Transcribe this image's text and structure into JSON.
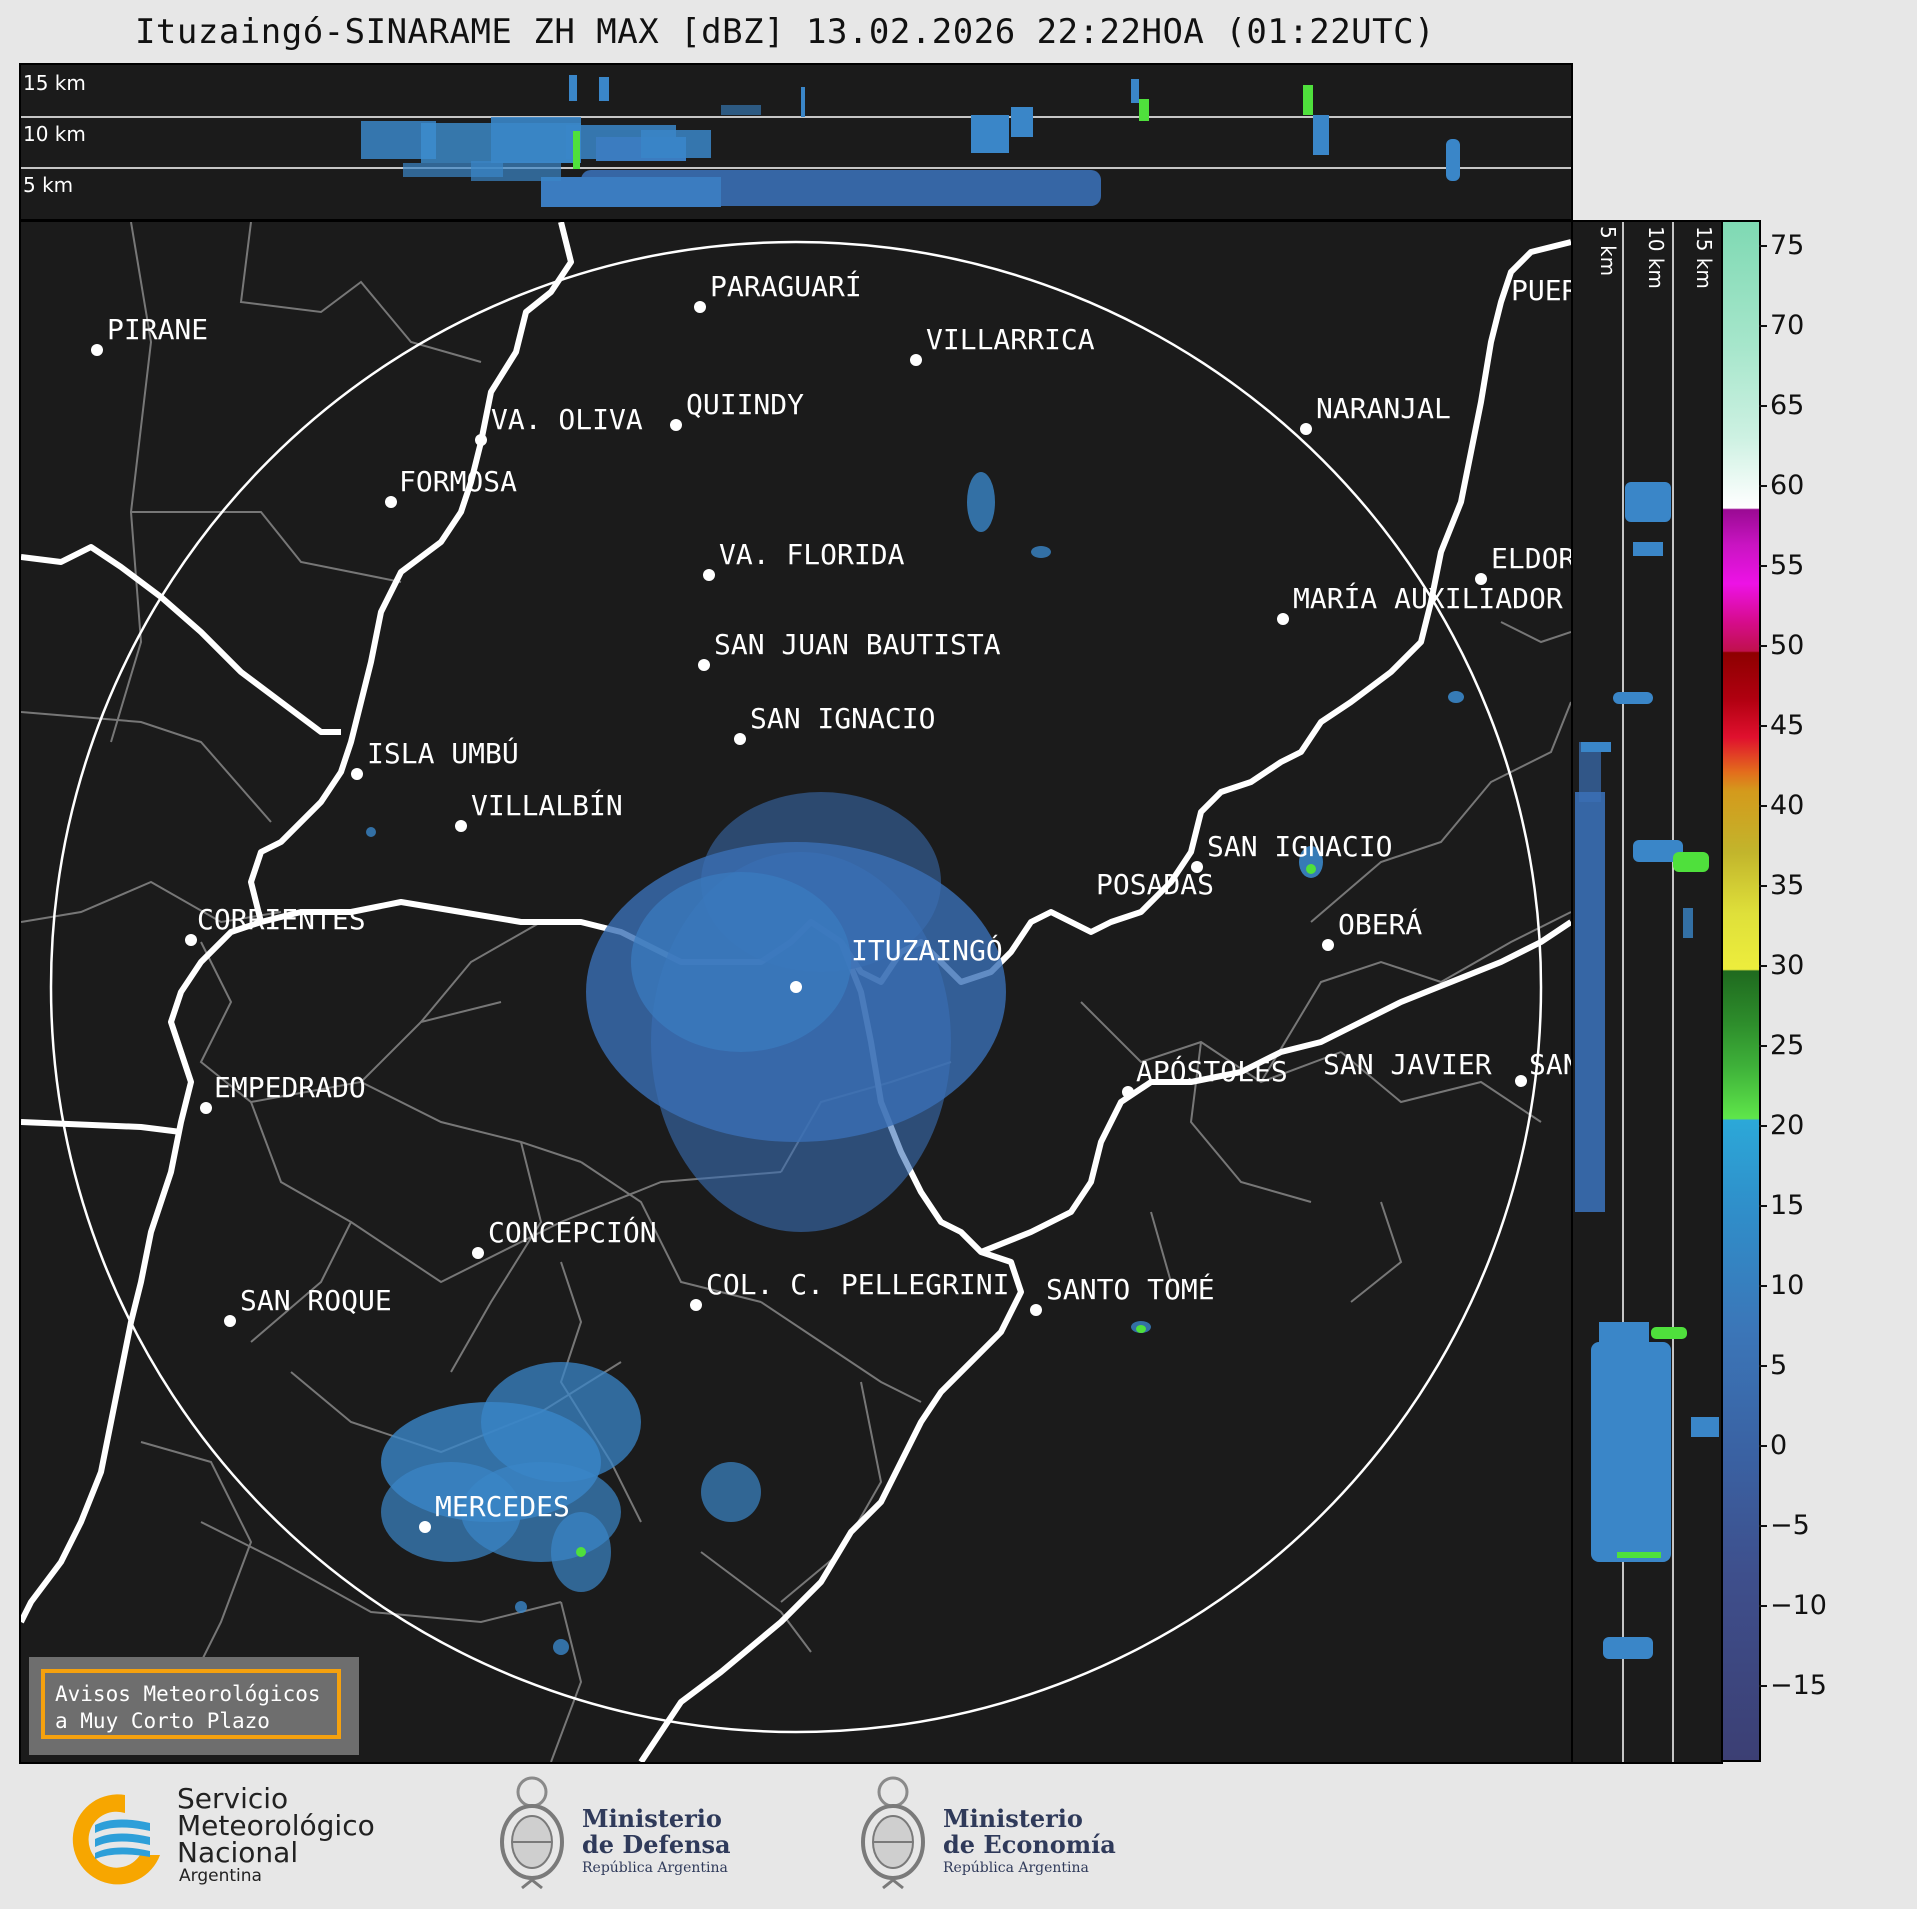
{
  "title": "Ituzaingó-SINARAME ZH MAX [dBZ] 13.02.2026 22:22HOA (01:22UTC)",
  "top_panel": {
    "altitude_labels": [
      "15 km",
      "10 km",
      "5 km"
    ]
  },
  "side_panel": {
    "altitude_labels": [
      "5 km",
      "10 km",
      "15 km"
    ]
  },
  "map": {
    "center_label": "ITUZAINGÓ",
    "places": [
      "PIRANE",
      "PARAGUARÍ",
      "VILLARRICA",
      "QUIINDY",
      "VA. OLIVA",
      "FORMOSA",
      "NARANJAL",
      "PUER",
      "VA. FLORIDA",
      "ELDOR",
      "MARÍA AUXILIADOR",
      "SAN JUAN BAUTISTA",
      "SAN IGNACIO",
      "ISLA UMBÚ",
      "VILLALBÍN",
      "SAN IGNACIO",
      "POSADAS",
      "CORRIENTES",
      "OBERÁ",
      "EMPEDRADO",
      "APÓSTOLES",
      "SAN JAVIER",
      "SAN",
      "CONCEPCIÓN",
      "COL. C. PELLEGRINI",
      "SANTO TOMÉ",
      "SAN ROQUE",
      "MERCEDES"
    ]
  },
  "colorbar": {
    "ticks": [
      "75",
      "70",
      "65",
      "60",
      "55",
      "50",
      "45",
      "40",
      "35",
      "30",
      "25",
      "20",
      "15",
      "10",
      "5",
      "0",
      "−5",
      "−10",
      "−15"
    ]
  },
  "avisos": {
    "line1": "Avisos Meteorológicos",
    "line2": "a Muy Corto Plazo"
  },
  "logos": {
    "smn": {
      "line1": "Servicio",
      "line2": "Meteorológico",
      "line3": "Nacional",
      "line4": "Argentina"
    },
    "defensa": {
      "line1": "Ministerio",
      "line2": "de Defensa",
      "line3": "República Argentina"
    },
    "economia": {
      "line1": "Ministerio",
      "line2": "de Economía",
      "line3": "República Argentina"
    }
  },
  "colors": {
    "panel_bg": "#1b1b1b",
    "echo_blue": "#3a86c8",
    "echo_green": "#4fe03c",
    "avisos_border": "#f5a10e",
    "smn_orange": "#f7a600",
    "smn_blue": "#2d9fd9"
  }
}
